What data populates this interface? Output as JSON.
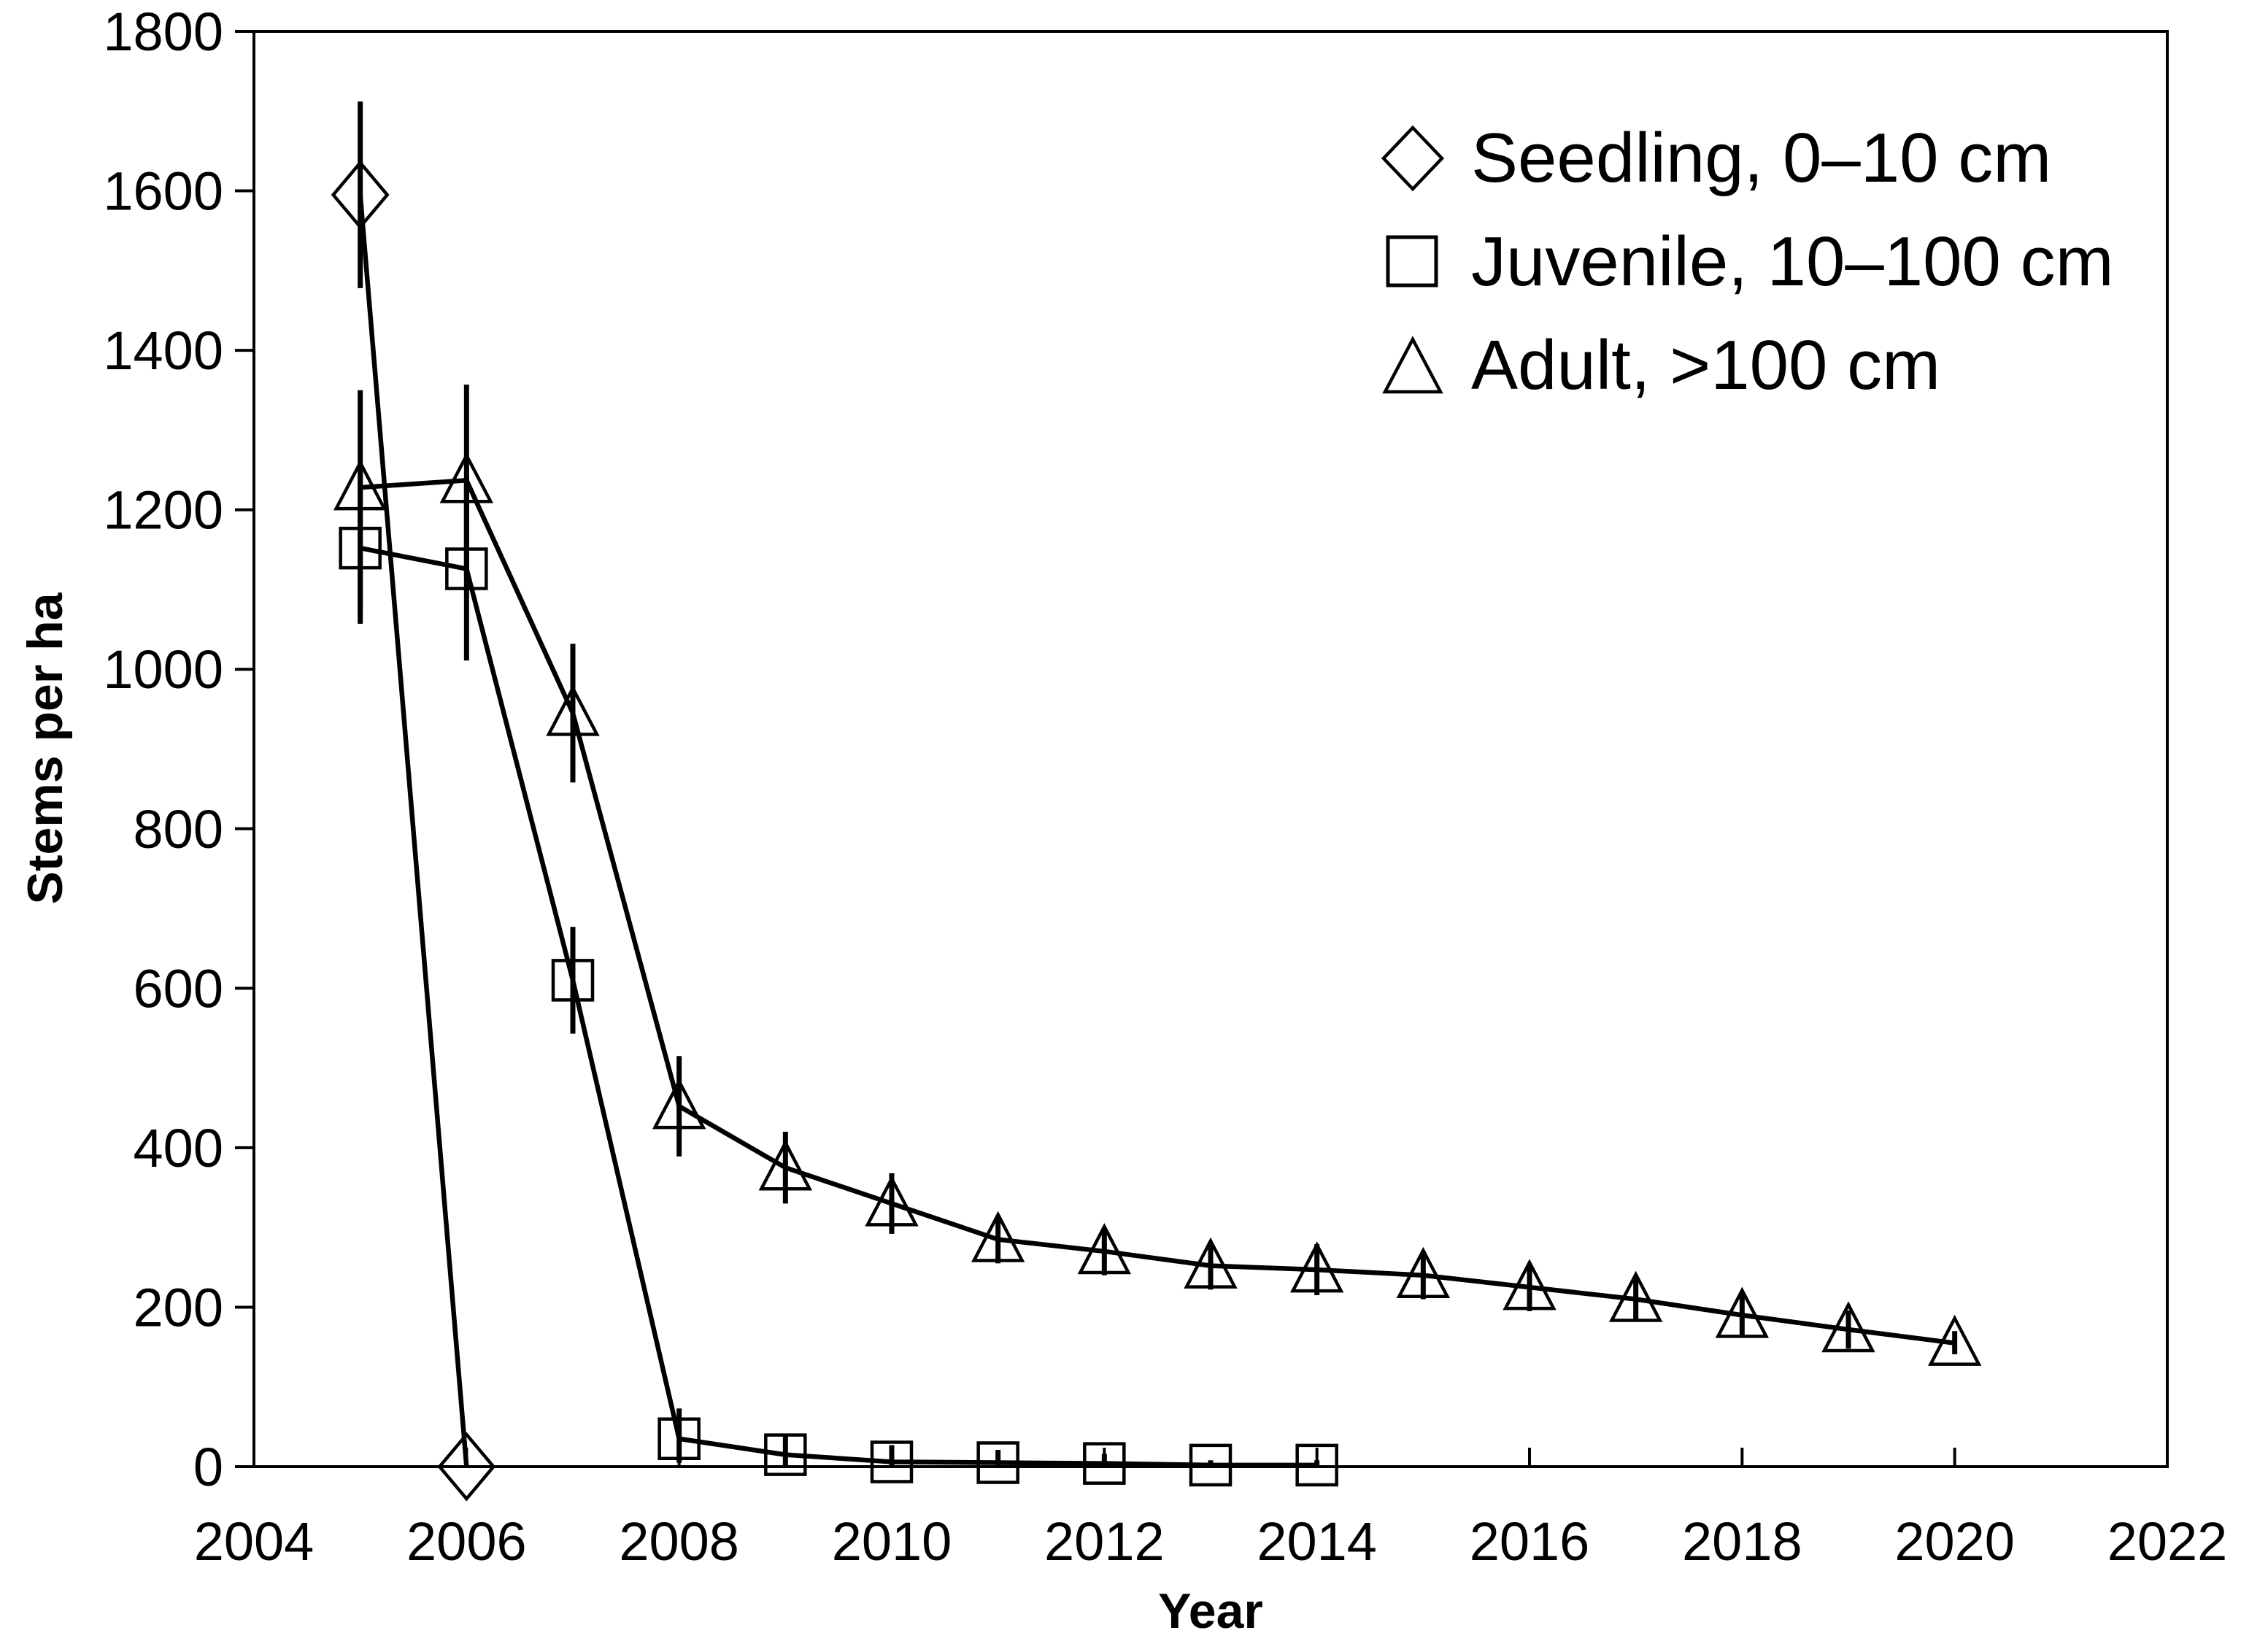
{
  "figure": {
    "background_color": "#ffffff",
    "ink_color": "#000000"
  },
  "chart_data": {
    "type": "line",
    "title": "",
    "xlabel": "Year",
    "ylabel": "Stems per ha",
    "xlim": [
      2004,
      2022
    ],
    "ylim": [
      0,
      1800
    ],
    "x_ticks": [
      2004,
      2006,
      2008,
      2010,
      2012,
      2014,
      2016,
      2018,
      2020,
      2022
    ],
    "y_ticks": [
      0,
      200,
      400,
      600,
      800,
      1000,
      1200,
      1400,
      1600,
      1800
    ],
    "grid": false,
    "plot_border": true,
    "error_bars": true,
    "legend_position": "top-right-inside",
    "series": [
      {
        "name": "Seedling, 0–10 cm",
        "marker": "diamond",
        "color": "#000000",
        "points": [
          {
            "x": 2005,
            "y": 1595,
            "lo": 1478,
            "hi": 1712
          },
          {
            "x": 2006,
            "y": 0
          }
        ]
      },
      {
        "name": "Juvenile, 10–100 cm",
        "marker": "square",
        "color": "#000000",
        "points": [
          {
            "x": 2005,
            "y": 1152,
            "lo": 1057,
            "hi": 1247
          },
          {
            "x": 2006,
            "y": 1126,
            "lo": 1011,
            "hi": 1241
          },
          {
            "x": 2007,
            "y": 610,
            "lo": 543,
            "hi": 677
          },
          {
            "x": 2008,
            "y": 35,
            "lo": 5,
            "hi": 73
          },
          {
            "x": 2009,
            "y": 15,
            "lo": 0,
            "hi": 38
          },
          {
            "x": 2010,
            "y": 6,
            "lo": 0,
            "hi": 27
          },
          {
            "x": 2011,
            "y": 5,
            "lo": 0,
            "hi": 21
          },
          {
            "x": 2012,
            "y": 4,
            "lo": 0,
            "hi": 16
          },
          {
            "x": 2013,
            "y": 2,
            "lo": 0,
            "hi": 8
          },
          {
            "x": 2014,
            "y": 2,
            "lo": 0,
            "hi": 8
          }
        ]
      },
      {
        "name": "Adult, >100 cm",
        "marker": "triangle",
        "color": "#000000",
        "points": [
          {
            "x": 2005,
            "y": 1228,
            "lo": 1070,
            "hi": 1350
          },
          {
            "x": 2006,
            "y": 1237,
            "lo": 1117,
            "hi": 1357
          },
          {
            "x": 2007,
            "y": 945,
            "lo": 858,
            "hi": 1032
          },
          {
            "x": 2008,
            "y": 452,
            "lo": 389,
            "hi": 515
          },
          {
            "x": 2009,
            "y": 375,
            "lo": 330,
            "hi": 420
          },
          {
            "x": 2010,
            "y": 330,
            "lo": 292,
            "hi": 368
          },
          {
            "x": 2011,
            "y": 285,
            "lo": 255,
            "hi": 315
          },
          {
            "x": 2012,
            "y": 270,
            "lo": 240,
            "hi": 300
          },
          {
            "x": 2013,
            "y": 252,
            "lo": 222,
            "hi": 282
          },
          {
            "x": 2014,
            "y": 247,
            "lo": 215,
            "hi": 279
          },
          {
            "x": 2015,
            "y": 240,
            "lo": 210,
            "hi": 270
          },
          {
            "x": 2016,
            "y": 225,
            "lo": 195,
            "hi": 255
          },
          {
            "x": 2017,
            "y": 210,
            "lo": 184,
            "hi": 236
          },
          {
            "x": 2018,
            "y": 190,
            "lo": 164,
            "hi": 216
          },
          {
            "x": 2019,
            "y": 172,
            "lo": 148,
            "hi": 196
          },
          {
            "x": 2020,
            "y": 155,
            "lo": 141,
            "hi": 170
          }
        ]
      }
    ]
  }
}
